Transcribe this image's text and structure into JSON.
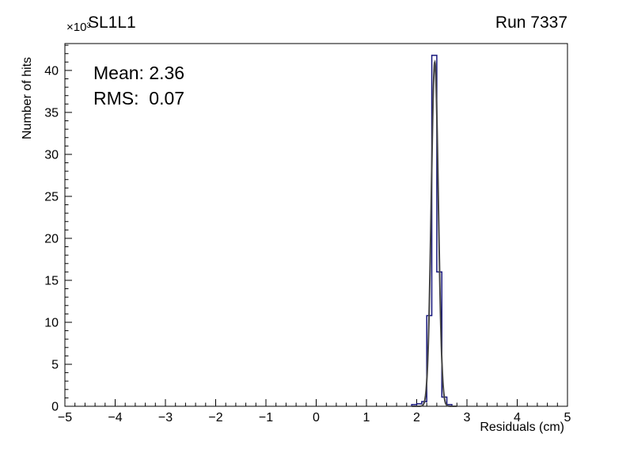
{
  "chart_data": {
    "type": "bar",
    "subtype": "histogram-step-with-gaussian-fit",
    "title": "SL1L1",
    "run": "Run 7337",
    "xlabel": "Residuals (cm)",
    "ylabel": "Number of hits",
    "y_unit_multiplier": "×10³",
    "background": "#ffffff",
    "axis_color": "#000000",
    "xlim": [
      -5,
      5
    ],
    "ylim": [
      0,
      43.2
    ],
    "xticks": [
      -5,
      -4,
      -3,
      -2,
      -1,
      0,
      1,
      2,
      3,
      4,
      5
    ],
    "yticks": [
      0,
      5,
      10,
      15,
      20,
      25,
      30,
      35,
      40
    ],
    "x_minor_step": 0.2,
    "y_minor_step": 1,
    "grid": false,
    "legend": "none",
    "stats_labels": {
      "mean": "Mean: 2.36",
      "rms": "RMS:  0.07"
    },
    "stats": {
      "mean": 2.36,
      "rms": 0.07
    },
    "histogram": {
      "color": "#17177d",
      "line_width": 1.5,
      "bin_width": 0.1,
      "units": "counts in thousands (×10³)",
      "bins": [
        {
          "x0": 1.9,
          "count": 0.2
        },
        {
          "x0": 2.0,
          "count": 0.3
        },
        {
          "x0": 2.1,
          "count": 0.55
        },
        {
          "x0": 2.2,
          "count": 10.8
        },
        {
          "x0": 2.3,
          "count": 41.8
        },
        {
          "x0": 2.4,
          "count": 16.0
        },
        {
          "x0": 2.5,
          "count": 1.1
        },
        {
          "x0": 2.6,
          "count": 0.2
        }
      ]
    },
    "fit_curve": {
      "color": "#454545",
      "line_width": 2,
      "shape": "gaussian",
      "mean": 2.36,
      "sigma": 0.07,
      "amplitude": 41.0,
      "range": [
        1.9,
        2.8
      ]
    }
  }
}
